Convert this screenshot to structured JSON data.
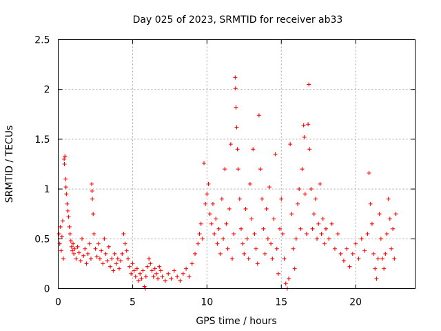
{
  "chart_data": {
    "type": "scatter",
    "title": "Day 025 of 2023, SRMTID for receiver ab33",
    "xlabel": "GPS time / hours",
    "ylabel": "SRMTID / TECUs",
    "xlim": [
      0,
      24
    ],
    "ylim": [
      0,
      2.5
    ],
    "xticks": [
      0,
      5,
      10,
      15,
      20
    ],
    "xtick_labels": [
      "0",
      "5",
      "10",
      "15",
      "20"
    ],
    "yticks": [
      0,
      0.5,
      1,
      1.5,
      2,
      2.5
    ],
    "ytick_labels": [
      "0",
      "0.5",
      "1",
      "1.5",
      "2",
      "2.5"
    ],
    "grid": true,
    "marker": "+",
    "series": [
      {
        "name": "SRMTID",
        "color": "#ff0000",
        "points": [
          [
            0.05,
            0.55
          ],
          [
            0.1,
            0.45
          ],
          [
            0.15,
            0.62
          ],
          [
            0.2,
            0.38
          ],
          [
            0.25,
            0.52
          ],
          [
            0.3,
            0.68
          ],
          [
            0.35,
            0.3
          ],
          [
            0.4,
            1.3
          ],
          [
            0.42,
            1.25
          ],
          [
            0.45,
            1.33
          ],
          [
            0.5,
            1.1
          ],
          [
            0.52,
            1.02
          ],
          [
            0.55,
            0.95
          ],
          [
            0.6,
            0.85
          ],
          [
            0.65,
            0.78
          ],
          [
            0.7,
            0.72
          ],
          [
            0.75,
            0.62
          ],
          [
            0.8,
            0.55
          ],
          [
            0.85,
            0.48
          ],
          [
            0.9,
            0.42
          ],
          [
            0.95,
            0.38
          ],
          [
            1.0,
            0.45
          ],
          [
            1.05,
            0.35
          ],
          [
            1.1,
            0.4
          ],
          [
            1.2,
            0.3
          ],
          [
            1.3,
            0.42
          ],
          [
            1.4,
            0.36
          ],
          [
            1.5,
            0.28
          ],
          [
            1.6,
            0.5
          ],
          [
            1.7,
            0.33
          ],
          [
            1.8,
            0.4
          ],
          [
            1.9,
            0.25
          ],
          [
            2.0,
            0.35
          ],
          [
            2.1,
            0.45
          ],
          [
            2.2,
            0.3
          ],
          [
            2.25,
            1.05
          ],
          [
            2.28,
            0.98
          ],
          [
            2.3,
            0.9
          ],
          [
            2.35,
            0.75
          ],
          [
            2.4,
            0.55
          ],
          [
            2.5,
            0.4
          ],
          [
            2.6,
            0.32
          ],
          [
            2.7,
            0.45
          ],
          [
            2.8,
            0.3
          ],
          [
            2.9,
            0.38
          ],
          [
            3.0,
            0.25
          ],
          [
            3.1,
            0.5
          ],
          [
            3.2,
            0.35
          ],
          [
            3.3,
            0.28
          ],
          [
            3.4,
            0.42
          ],
          [
            3.5,
            0.22
          ],
          [
            3.6,
            0.3
          ],
          [
            3.7,
            0.18
          ],
          [
            3.8,
            0.35
          ],
          [
            3.9,
            0.25
          ],
          [
            4.0,
            0.3
          ],
          [
            4.1,
            0.2
          ],
          [
            4.2,
            0.28
          ],
          [
            4.3,
            0.35
          ],
          [
            4.4,
            0.55
          ],
          [
            4.5,
            0.45
          ],
          [
            4.6,
            0.38
          ],
          [
            4.7,
            0.3
          ],
          [
            4.8,
            0.22
          ],
          [
            4.9,
            0.15
          ],
          [
            5.0,
            0.25
          ],
          [
            5.1,
            0.18
          ],
          [
            5.2,
            0.12
          ],
          [
            5.3,
            0.2
          ],
          [
            5.4,
            0.08
          ],
          [
            5.5,
            0.15
          ],
          [
            5.6,
            0.1
          ],
          [
            5.7,
            0.18
          ],
          [
            5.8,
            0.02
          ],
          [
            5.85,
            0.0
          ],
          [
            5.9,
            0.12
          ],
          [
            6.0,
            0.22
          ],
          [
            6.1,
            0.3
          ],
          [
            6.2,
            0.25
          ],
          [
            6.3,
            0.18
          ],
          [
            6.4,
            0.12
          ],
          [
            6.5,
            0.2
          ],
          [
            6.6,
            0.15
          ],
          [
            6.7,
            0.1
          ],
          [
            6.8,
            0.22
          ],
          [
            6.9,
            0.18
          ],
          [
            7.0,
            0.12
          ],
          [
            7.2,
            0.08
          ],
          [
            7.4,
            0.15
          ],
          [
            7.6,
            0.1
          ],
          [
            7.8,
            0.18
          ],
          [
            8.0,
            0.12
          ],
          [
            8.2,
            0.08
          ],
          [
            8.4,
            0.15
          ],
          [
            8.6,
            0.2
          ],
          [
            8.8,
            0.12
          ],
          [
            9.0,
            0.25
          ],
          [
            9.2,
            0.35
          ],
          [
            9.4,
            0.45
          ],
          [
            9.5,
            0.55
          ],
          [
            9.6,
            0.65
          ],
          [
            9.7,
            0.5
          ],
          [
            9.8,
            1.26
          ],
          [
            9.9,
            0.85
          ],
          [
            10.0,
            0.95
          ],
          [
            10.1,
            1.05
          ],
          [
            10.2,
            0.75
          ],
          [
            10.3,
            0.65
          ],
          [
            10.4,
            0.85
          ],
          [
            10.5,
            0.55
          ],
          [
            10.6,
            0.7
          ],
          [
            10.7,
            0.45
          ],
          [
            10.8,
            0.6
          ],
          [
            10.9,
            0.35
          ],
          [
            11.0,
            0.9
          ],
          [
            11.1,
            0.5
          ],
          [
            11.2,
            1.2
          ],
          [
            11.3,
            0.65
          ],
          [
            11.4,
            0.4
          ],
          [
            11.5,
            0.8
          ],
          [
            11.6,
            1.45
          ],
          [
            11.7,
            0.3
          ],
          [
            11.8,
            0.55
          ],
          [
            11.9,
            2.12
          ],
          [
            11.92,
            2.01
          ],
          [
            11.95,
            1.82
          ],
          [
            12.0,
            1.62
          ],
          [
            12.05,
            1.4
          ],
          [
            12.1,
            1.2
          ],
          [
            12.2,
            0.9
          ],
          [
            12.3,
            0.6
          ],
          [
            12.4,
            0.45
          ],
          [
            12.5,
            0.35
          ],
          [
            12.6,
            0.8
          ],
          [
            12.7,
            0.5
          ],
          [
            12.8,
            0.3
          ],
          [
            12.9,
            1.05
          ],
          [
            13.0,
            0.7
          ],
          [
            13.1,
            1.4
          ],
          [
            13.2,
            0.55
          ],
          [
            13.3,
            0.4
          ],
          [
            13.4,
            0.25
          ],
          [
            13.5,
            1.74
          ],
          [
            13.6,
            1.2
          ],
          [
            13.7,
            0.9
          ],
          [
            13.8,
            0.6
          ],
          [
            13.9,
            0.35
          ],
          [
            14.0,
            0.8
          ],
          [
            14.1,
            0.5
          ],
          [
            14.2,
            1.02
          ],
          [
            14.3,
            0.45
          ],
          [
            14.4,
            0.3
          ],
          [
            14.5,
            0.7
          ],
          [
            14.6,
            1.35
          ],
          [
            14.7,
            0.4
          ],
          [
            14.8,
            0.15
          ],
          [
            14.9,
            0.6
          ],
          [
            15.0,
            0.9
          ],
          [
            15.1,
            0.55
          ],
          [
            15.2,
            0.3
          ],
          [
            15.3,
            0.05
          ],
          [
            15.4,
            0.0
          ],
          [
            15.5,
            0.1
          ],
          [
            15.6,
            1.45
          ],
          [
            15.7,
            0.75
          ],
          [
            15.8,
            0.4
          ],
          [
            15.9,
            0.2
          ],
          [
            16.0,
            0.5
          ],
          [
            16.1,
            0.85
          ],
          [
            16.2,
            1.0
          ],
          [
            16.3,
            0.6
          ],
          [
            16.4,
            1.2
          ],
          [
            16.5,
            1.64
          ],
          [
            16.55,
            1.52
          ],
          [
            16.6,
            0.95
          ],
          [
            16.7,
            0.55
          ],
          [
            16.8,
            1.65
          ],
          [
            16.85,
            2.05
          ],
          [
            16.9,
            1.4
          ],
          [
            17.0,
            1.0
          ],
          [
            17.1,
            0.6
          ],
          [
            17.2,
            0.75
          ],
          [
            17.3,
            0.9
          ],
          [
            17.4,
            0.5
          ],
          [
            17.5,
            0.65
          ],
          [
            17.6,
            1.05
          ],
          [
            17.7,
            0.55
          ],
          [
            17.8,
            0.7
          ],
          [
            17.9,
            0.45
          ],
          [
            18.0,
            0.6
          ],
          [
            18.2,
            0.5
          ],
          [
            18.4,
            0.65
          ],
          [
            18.6,
            0.4
          ],
          [
            18.8,
            0.55
          ],
          [
            19.0,
            0.35
          ],
          [
            19.2,
            0.28
          ],
          [
            19.4,
            0.4
          ],
          [
            19.6,
            0.22
          ],
          [
            19.8,
            0.35
          ],
          [
            20.0,
            0.45
          ],
          [
            20.2,
            0.3
          ],
          [
            20.4,
            0.5
          ],
          [
            20.6,
            0.38
          ],
          [
            20.8,
            0.55
          ],
          [
            20.9,
            1.16
          ],
          [
            21.0,
            0.85
          ],
          [
            21.1,
            0.65
          ],
          [
            21.2,
            0.35
          ],
          [
            21.3,
            0.2
          ],
          [
            21.4,
            0.1
          ],
          [
            21.5,
            0.3
          ],
          [
            21.6,
            0.75
          ],
          [
            21.7,
            0.5
          ],
          [
            21.8,
            0.3
          ],
          [
            21.9,
            0.2
          ],
          [
            22.0,
            0.35
          ],
          [
            22.1,
            0.55
          ],
          [
            22.2,
            0.9
          ],
          [
            22.3,
            0.7
          ],
          [
            22.4,
            0.4
          ],
          [
            22.5,
            0.6
          ],
          [
            22.6,
            0.3
          ],
          [
            22.7,
            0.75
          ]
        ]
      }
    ]
  }
}
